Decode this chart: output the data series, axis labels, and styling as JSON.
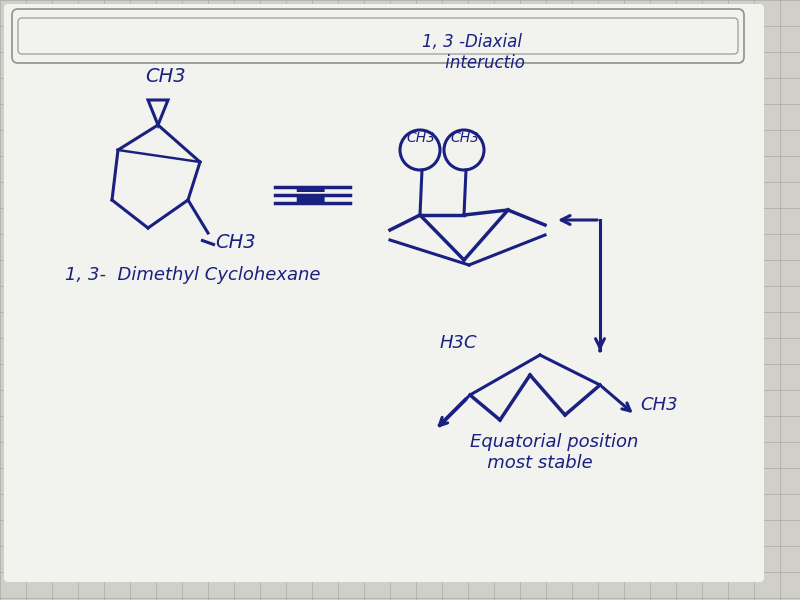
{
  "background_color": "#d0cfc8",
  "grid_color": "#a8a8a0",
  "ink_color": "#1a2080",
  "paper_color": "#f2f2ee",
  "label_13_dimethyl": "1, 3-  Dimethyl Cyclohexane",
  "label_diaxial": "1, 3 -Diaxial\n     inteructio",
  "label_equatorial": "Equatorial position\n   most stable",
  "label_h3c": "H3C",
  "label_ch3_tl": "CH3",
  "label_ch3_br_left": "CH3",
  "label_ch3_circ1": "CH3",
  "label_ch3_circ2": "CH3",
  "label_ch3_eq": "CH3",
  "figsize": [
    8.0,
    6.0
  ],
  "dpi": 100
}
